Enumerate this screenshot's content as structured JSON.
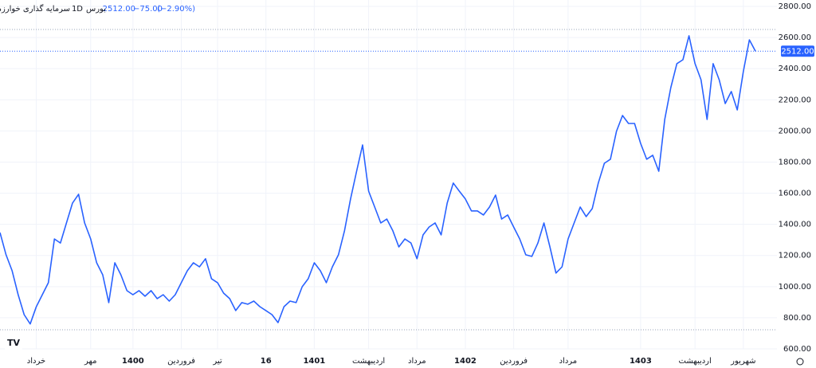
{
  "chart_data": {
    "type": "line",
    "header": {
      "name": "سرمایه گذاری خوارزمی",
      "interval": "1D",
      "exchange": "بورس",
      "price": "2512.00",
      "change": "−75.00",
      "change_percent": "(−2.90%)"
    },
    "categories": [
      null,
      null,
      null,
      null,
      null,
      null,
      "خرداد",
      null,
      null,
      null,
      null,
      null,
      null,
      null,
      null,
      "مهر",
      null,
      null,
      null,
      null,
      null,
      null,
      "1400",
      null,
      null,
      null,
      null,
      null,
      null,
      null,
      "فروردین",
      null,
      null,
      null,
      null,
      null,
      "تیر",
      null,
      null,
      null,
      null,
      null,
      null,
      null,
      "16",
      null,
      null,
      null,
      null,
      null,
      null,
      null,
      "1401",
      null,
      null,
      null,
      null,
      null,
      null,
      null,
      null,
      "اردیبهشت",
      null,
      null,
      null,
      null,
      null,
      null,
      null,
      "مرداد",
      null,
      null,
      null,
      null,
      null,
      null,
      null,
      "1402",
      null,
      null,
      null,
      null,
      null,
      null,
      null,
      "فروردین",
      null,
      null,
      null,
      null,
      null,
      null,
      null,
      null,
      "مرداد",
      null,
      null,
      null,
      null,
      null,
      null,
      null,
      null,
      null,
      null,
      null,
      "1403",
      null,
      null,
      null,
      null,
      null,
      null,
      null,
      null,
      "اردیبهشت",
      null,
      null,
      null,
      null,
      null,
      null,
      null,
      "شهریور",
      null,
      null
    ],
    "series": [
      {
        "name": "سرمایه گذاری خوارزمی",
        "color": "#2962ff",
        "values": [
          1347,
          1204,
          1102,
          948,
          820,
          760,
          870,
          948,
          1025,
          1306,
          1280,
          1409,
          1537,
          1593,
          1409,
          1306,
          1153,
          1076,
          897,
          1153,
          1076,
          974,
          948,
          974,
          938,
          974,
          923,
          948,
          907,
          948,
          1025,
          1102,
          1153,
          1127,
          1179,
          1051,
          1025,
          958,
          923,
          846,
          897,
          887,
          907,
          871,
          846,
          820,
          769,
          871,
          907,
          897,
          999,
          1051,
          1153,
          1102,
          1025,
          1127,
          1204,
          1358,
          1563,
          1741,
          1910,
          1613,
          1511,
          1409,
          1434,
          1358,
          1255,
          1306,
          1280,
          1179,
          1332,
          1383,
          1409,
          1332,
          1537,
          1665,
          1613,
          1563,
          1486,
          1486,
          1460,
          1511,
          1588,
          1434,
          1460,
          1383,
          1306,
          1204,
          1194,
          1280,
          1409,
          1255,
          1087,
          1127,
          1306,
          1409,
          1511,
          1450,
          1501,
          1665,
          1792,
          1818,
          1997,
          2099,
          2048,
          2048,
          1920,
          1818,
          1844,
          1741,
          2074,
          2278,
          2432,
          2457,
          2611,
          2432,
          2329,
          2074,
          2432,
          2329,
          2176,
          2253,
          2135,
          2381,
          2585,
          2512
        ]
      }
    ],
    "last_price": {
      "value": 2512,
      "label": "2512.00"
    },
    "ylim": [
      600,
      2800
    ],
    "yticks": [
      {
        "value": 600,
        "label": "600.00"
      },
      {
        "value": 800,
        "label": "800.00"
      },
      {
        "value": 1000,
        "label": "1000.00"
      },
      {
        "value": 1200,
        "label": "1200.00"
      },
      {
        "value": 1400,
        "label": "1400.00"
      },
      {
        "value": 1600,
        "label": "1600.00"
      },
      {
        "value": 1800,
        "label": "1800.00"
      },
      {
        "value": 2000,
        "label": "2000.00"
      },
      {
        "value": 2200,
        "label": "2200.00"
      },
      {
        "value": 2400,
        "label": "2400.00"
      },
      {
        "value": 2600,
        "label": "2600.00"
      },
      {
        "value": 2800,
        "label": "2800.00"
      }
    ],
    "grid": true
  }
}
